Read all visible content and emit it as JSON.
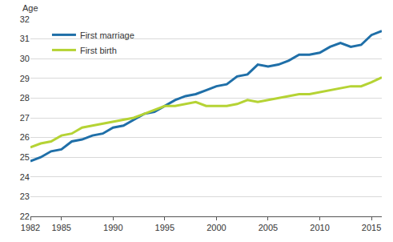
{
  "chart_data": {
    "type": "line",
    "y_label": "Age",
    "x": [
      1982,
      1983,
      1984,
      1985,
      1986,
      1987,
      1988,
      1989,
      1990,
      1991,
      1992,
      1993,
      1994,
      1995,
      1996,
      1997,
      1998,
      1999,
      2000,
      2001,
      2002,
      2003,
      2004,
      2005,
      2006,
      2007,
      2008,
      2009,
      2010,
      2011,
      2012,
      2013,
      2014,
      2015,
      2016
    ],
    "series": [
      {
        "name": "First marriage",
        "color": "#1f6fa8",
        "values": [
          24.8,
          25.0,
          25.3,
          25.4,
          25.8,
          25.9,
          26.1,
          26.2,
          26.5,
          26.6,
          26.9,
          27.2,
          27.3,
          27.6,
          27.9,
          28.1,
          28.2,
          28.4,
          28.6,
          28.7,
          29.1,
          29.2,
          29.7,
          29.6,
          29.7,
          29.9,
          30.2,
          30.2,
          30.3,
          30.6,
          30.8,
          30.6,
          30.7,
          31.2,
          31.4
        ]
      },
      {
        "name": "First birth",
        "color": "#b5d334",
        "values": [
          25.5,
          25.7,
          25.8,
          26.1,
          26.2,
          26.5,
          26.6,
          26.7,
          26.8,
          26.9,
          27.0,
          27.2,
          27.4,
          27.6,
          27.6,
          27.7,
          27.8,
          27.6,
          27.6,
          27.6,
          27.7,
          27.9,
          27.8,
          27.9,
          28.0,
          28.1,
          28.2,
          28.2,
          28.3,
          28.4,
          28.5,
          28.6,
          28.6,
          28.8,
          29.05
        ]
      }
    ],
    "xlim": [
      1982,
      2016
    ],
    "xticks": [
      1982,
      1985,
      1990,
      1995,
      2000,
      2005,
      2010,
      2015
    ],
    "ylim": [
      22,
      32
    ],
    "yticks": [
      22,
      23,
      24,
      25,
      26,
      27,
      28,
      29,
      30,
      31,
      32
    ],
    "grid": true,
    "legend": "upper left"
  }
}
